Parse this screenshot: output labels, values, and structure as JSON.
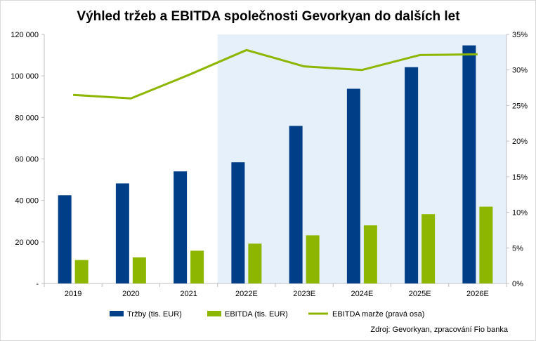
{
  "chart_data": {
    "type": "bar",
    "title": "Výhled tržeb a EBITDA společnosti Gevorkyan do dalších let",
    "categories": [
      "2019",
      "2020",
      "2021",
      "2022E",
      "2023E",
      "2024E",
      "2025E",
      "2026E"
    ],
    "forecast_shading_from": "2022E",
    "y_left": {
      "ylim": [
        0,
        120000
      ],
      "ticks": [
        0,
        20000,
        40000,
        60000,
        80000,
        100000,
        120000
      ],
      "tick_labels": [
        "-",
        "20 000",
        "40 000",
        "60 000",
        "80 000",
        "100 000",
        "120 000"
      ]
    },
    "y_right": {
      "ylim": [
        0,
        35
      ],
      "ticks": [
        0,
        5,
        10,
        15,
        20,
        25,
        30,
        35
      ],
      "tick_labels": [
        "0%",
        "5%",
        "10%",
        "15%",
        "20%",
        "25%",
        "30%",
        "35%"
      ]
    },
    "series": [
      {
        "name": "Tržby (tis. EUR)",
        "kind": "bar",
        "axis": "left",
        "color": "#003f87",
        "values": [
          42500,
          48200,
          54000,
          58400,
          75900,
          93800,
          104200,
          114700
        ]
      },
      {
        "name": "EBITDA (tis. EUR)",
        "kind": "bar",
        "axis": "left",
        "color": "#8db600",
        "values": [
          11300,
          12600,
          15800,
          19200,
          23200,
          28000,
          33400,
          37000
        ]
      },
      {
        "name": "EBITDA marže (pravá osa)",
        "kind": "line",
        "axis": "right",
        "color": "#8db600",
        "values": [
          26.5,
          26.0,
          29.3,
          32.8,
          30.5,
          30.0,
          32.1,
          32.2
        ]
      }
    ],
    "legend": "bottom",
    "grid": false
  },
  "source_note": "Zdroj: Gevorkyan, zpracování Fio banka",
  "colors": {
    "forecast_bg": "#e6f0fb",
    "axis": "#bfbfbf"
  }
}
